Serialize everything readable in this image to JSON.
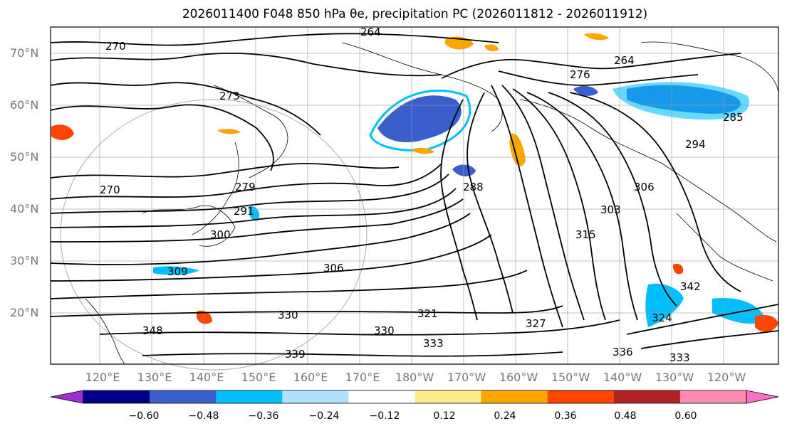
{
  "title": "2026011400 F048 850 hPa θe, precipitation PC (2026011812 - 2026011912)",
  "latitude_labels": [
    "70°N",
    "60°N",
    "50°N",
    "40°N",
    "30°N",
    "20°N"
  ],
  "longitude_labels": [
    "120°E",
    "130°E",
    "140°E",
    "150°E",
    "160°E",
    "170°E",
    "180°W",
    "170°W",
    "160°W",
    "150°W",
    "140°W",
    "130°W",
    "120°W"
  ],
  "contour_labels": [
    "264",
    "270",
    "273",
    "276",
    "279",
    "285",
    "288",
    "291",
    "294",
    "300",
    "303",
    "306",
    "309",
    "315",
    "321",
    "324",
    "327",
    "330",
    "333",
    "336",
    "339",
    "342",
    "348"
  ],
  "colorbar": {
    "ticks": [
      "−0.60",
      "−0.48",
      "−0.36",
      "−0.24",
      "−0.12",
      "0.12",
      "0.24",
      "0.36",
      "0.48",
      "0.60"
    ],
    "colors": [
      "#9b30d0",
      "#00008b",
      "#3a5fcd",
      "#00bfff",
      "#b0e2ff",
      "#ffffff",
      "#ffec8b",
      "#ffa500",
      "#ff4500",
      "#b22222",
      "#ff8ab0",
      "#ff6ec7"
    ]
  },
  "colors": {
    "negative_fill": "#3a5fcd",
    "negative_light": "#00bfff",
    "positive_fill": "#ffa500",
    "positive_strong": "#ff4500",
    "grid": "#999999"
  }
}
